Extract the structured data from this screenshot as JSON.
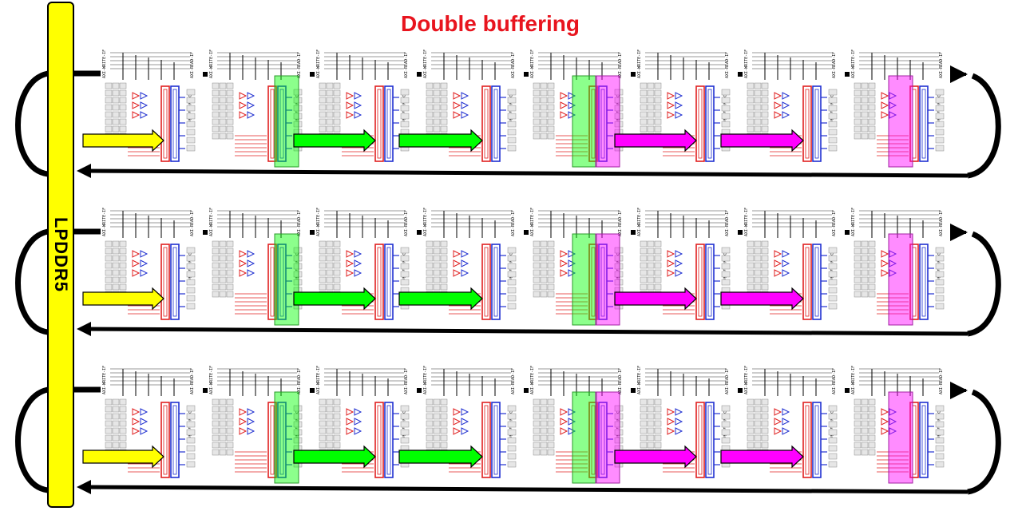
{
  "title": "Double buffering",
  "memory_label": "LPDDR5",
  "module_labels": {
    "write": "AXI-WRITE-IF",
    "read": "AXI-READ-IF",
    "buffer": "(I) Double buffering"
  },
  "rows": 3,
  "modules_per_row": 8,
  "colors": {
    "title": "#e8141e",
    "memory": "#ffff00",
    "green": "#00ff00",
    "magenta": "#ff00ff",
    "red_block": "#e02020",
    "blue_block": "#2030d0"
  }
}
